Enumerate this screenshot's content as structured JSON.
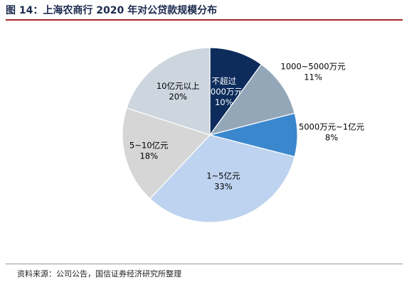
{
  "header": {
    "title": "图 14：上海农商行 2020 年对公贷款规模分布"
  },
  "footer": {
    "source": "资料来源：公司公告，国信证券经济研究所整理"
  },
  "chart_data": {
    "type": "pie",
    "start_angle_deg": 0,
    "direction": "clockwise",
    "slices": [
      {
        "label_lines": [
          "不超过",
          "1000万元"
        ],
        "value": 10,
        "display": "10%",
        "color": "#0d2c5b",
        "text_color": "#ffffff"
      },
      {
        "label_lines": [
          "1000~5000万元"
        ],
        "value": 11,
        "display": "11%",
        "color": "#94a7b9",
        "text_color": "#000000"
      },
      {
        "label_lines": [
          "5000万元~1亿元"
        ],
        "value": 8,
        "display": "8%",
        "color": "#3b87cd",
        "text_color": "#000000"
      },
      {
        "label_lines": [
          "1~5亿元"
        ],
        "value": 33,
        "display": "33%",
        "color": "#bdd3ef",
        "text_color": "#000000"
      },
      {
        "label_lines": [
          "5~10亿元"
        ],
        "value": 18,
        "display": "18%",
        "color": "#d6d6d6",
        "text_color": "#000000"
      },
      {
        "label_lines": [
          "10亿元以上"
        ],
        "value": 20,
        "display": "20%",
        "color": "#cdd5df",
        "text_color": "#000000"
      }
    ]
  }
}
